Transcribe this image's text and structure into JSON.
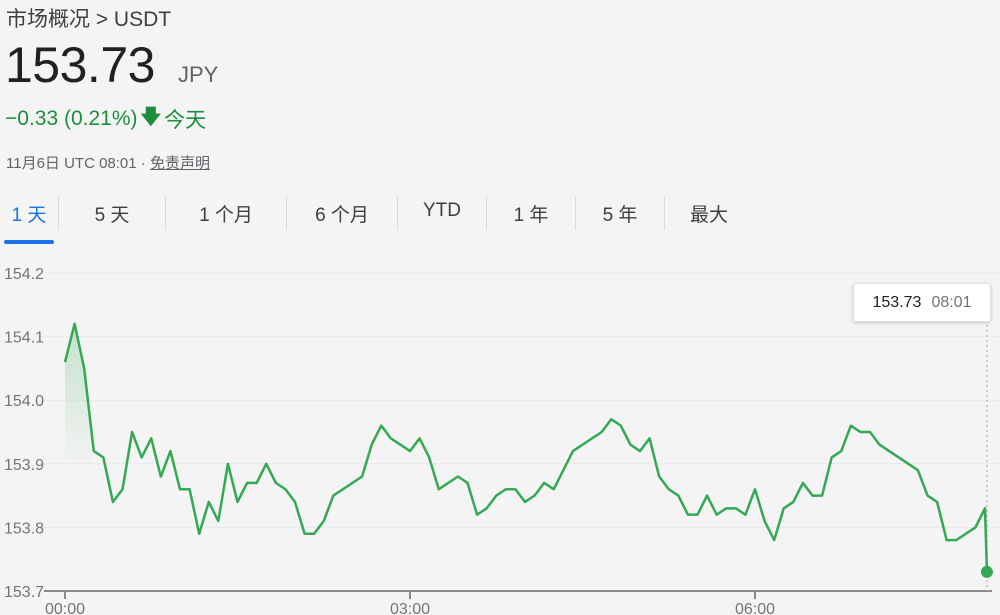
{
  "header": {
    "breadcrumb": "市场概况 > USDT",
    "price": "153.73",
    "currency": "JPY",
    "change": "−0.33 (0.21%)",
    "change_icon": "arrow-down-icon",
    "change_period": "今天",
    "timestamp": "11月6日 UTC 08:01 · ",
    "disclaimer_link": "免责声明"
  },
  "tabs": [
    {
      "label": "1 天",
      "selected": true
    },
    {
      "label": "5 天"
    },
    {
      "label": "1 个月"
    },
    {
      "label": "6 个月"
    },
    {
      "label": "YTD"
    },
    {
      "label": "1 年"
    },
    {
      "label": "5 年"
    },
    {
      "label": "最大"
    }
  ],
  "tooltip": {
    "value": "153.73",
    "time": "08:01"
  },
  "colors": {
    "line": "#34a853",
    "accent": "#1a73e8",
    "change": "#1e8e3e"
  },
  "chart_data": {
    "type": "line",
    "title": "",
    "xlabel": "",
    "ylabel": "",
    "ylim": [
      153.7,
      154.2
    ],
    "yticks": [
      "154.2",
      "154.1",
      "154.0",
      "153.9",
      "153.8",
      "153.7"
    ],
    "xticks": [
      "00:00",
      "03:00",
      "06:00"
    ],
    "xlim": [
      "00:00",
      "08:01"
    ],
    "grid": "horizontal",
    "series": [
      {
        "points": [
          [
            "00:00",
            154.06
          ],
          [
            "00:05",
            154.12
          ],
          [
            "00:10",
            154.05
          ],
          [
            "00:15",
            153.92
          ],
          [
            "00:20",
            153.91
          ],
          [
            "00:25",
            153.84
          ],
          [
            "00:30",
            153.86
          ],
          [
            "00:35",
            153.95
          ],
          [
            "00:40",
            153.91
          ],
          [
            "00:45",
            153.94
          ],
          [
            "00:50",
            153.88
          ],
          [
            "00:55",
            153.92
          ],
          [
            "01:00",
            153.86
          ],
          [
            "01:05",
            153.86
          ],
          [
            "01:10",
            153.79
          ],
          [
            "01:15",
            153.84
          ],
          [
            "01:20",
            153.81
          ],
          [
            "01:25",
            153.9
          ],
          [
            "01:30",
            153.84
          ],
          [
            "01:35",
            153.87
          ],
          [
            "01:40",
            153.87
          ],
          [
            "01:45",
            153.9
          ],
          [
            "01:50",
            153.87
          ],
          [
            "01:55",
            153.86
          ],
          [
            "02:00",
            153.84
          ],
          [
            "02:05",
            153.79
          ],
          [
            "02:10",
            153.79
          ],
          [
            "02:15",
            153.81
          ],
          [
            "02:20",
            153.85
          ],
          [
            "02:25",
            153.86
          ],
          [
            "02:30",
            153.87
          ],
          [
            "02:35",
            153.88
          ],
          [
            "02:40",
            153.93
          ],
          [
            "02:45",
            153.96
          ],
          [
            "02:50",
            153.94
          ],
          [
            "02:55",
            153.93
          ],
          [
            "03:00",
            153.92
          ],
          [
            "03:05",
            153.94
          ],
          [
            "03:10",
            153.91
          ],
          [
            "03:15",
            153.86
          ],
          [
            "03:20",
            153.87
          ],
          [
            "03:25",
            153.88
          ],
          [
            "03:30",
            153.87
          ],
          [
            "03:35",
            153.82
          ],
          [
            "03:40",
            153.83
          ],
          [
            "03:45",
            153.85
          ],
          [
            "03:50",
            153.86
          ],
          [
            "03:55",
            153.86
          ],
          [
            "04:00",
            153.84
          ],
          [
            "04:05",
            153.85
          ],
          [
            "04:10",
            153.87
          ],
          [
            "04:15",
            153.86
          ],
          [
            "04:20",
            153.89
          ],
          [
            "04:25",
            153.92
          ],
          [
            "04:30",
            153.93
          ],
          [
            "04:35",
            153.94
          ],
          [
            "04:40",
            153.95
          ],
          [
            "04:45",
            153.97
          ],
          [
            "04:50",
            153.96
          ],
          [
            "04:55",
            153.93
          ],
          [
            "05:00",
            153.92
          ],
          [
            "05:05",
            153.94
          ],
          [
            "05:10",
            153.88
          ],
          [
            "05:15",
            153.86
          ],
          [
            "05:20",
            153.85
          ],
          [
            "05:25",
            153.82
          ],
          [
            "05:30",
            153.82
          ],
          [
            "05:35",
            153.85
          ],
          [
            "05:40",
            153.82
          ],
          [
            "05:45",
            153.83
          ],
          [
            "05:50",
            153.83
          ],
          [
            "05:55",
            153.82
          ],
          [
            "06:00",
            153.86
          ],
          [
            "06:05",
            153.81
          ],
          [
            "06:10",
            153.78
          ],
          [
            "06:15",
            153.83
          ],
          [
            "06:20",
            153.84
          ],
          [
            "06:25",
            153.87
          ],
          [
            "06:30",
            153.85
          ],
          [
            "06:35",
            153.85
          ],
          [
            "06:40",
            153.91
          ],
          [
            "06:45",
            153.92
          ],
          [
            "06:50",
            153.96
          ],
          [
            "06:55",
            153.95
          ],
          [
            "07:00",
            153.95
          ],
          [
            "07:05",
            153.93
          ],
          [
            "07:10",
            153.92
          ],
          [
            "07:15",
            153.91
          ],
          [
            "07:20",
            153.9
          ],
          [
            "07:25",
            153.89
          ],
          [
            "07:30",
            153.85
          ],
          [
            "07:35",
            153.84
          ],
          [
            "07:40",
            153.78
          ],
          [
            "07:45",
            153.78
          ],
          [
            "07:50",
            153.79
          ],
          [
            "07:55",
            153.8
          ],
          [
            "08:00",
            153.83
          ],
          [
            "08:01",
            153.73
          ]
        ]
      }
    ]
  }
}
